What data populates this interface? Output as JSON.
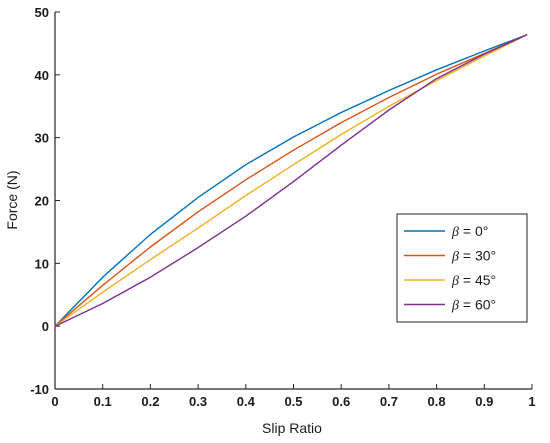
{
  "chart_data": {
    "type": "line",
    "title": "",
    "xlabel": "Slip Ratio",
    "ylabel": "Force (N)",
    "xlim": [
      0,
      1
    ],
    "ylim": [
      -10,
      50
    ],
    "xticks": [
      0,
      0.1,
      0.2,
      0.3,
      0.4,
      0.5,
      0.6,
      0.7,
      0.8,
      0.9,
      1
    ],
    "xtick_labels": [
      "0",
      "0.1",
      "0.2",
      "0.3",
      "0.4",
      "0.5",
      "0.6",
      "0.7",
      "0.8",
      "0.9",
      "1"
    ],
    "yticks": [
      -10,
      0,
      10,
      20,
      30,
      40,
      50
    ],
    "ytick_labels": [
      "-10",
      "0",
      "10",
      "20",
      "30",
      "40",
      "50"
    ],
    "grid": false,
    "legend_position": "right",
    "x": [
      0,
      0.1,
      0.2,
      0.3,
      0.4,
      0.5,
      0.6,
      0.7,
      0.8,
      0.9,
      0.99
    ],
    "series": [
      {
        "name": "β = 0°",
        "symbol": "β",
        "rest": " = 0°",
        "color": "#0072BD",
        "values": [
          0,
          7.8,
          14.6,
          20.5,
          25.7,
          30.1,
          34.0,
          37.5,
          40.8,
          43.8,
          46.4
        ]
      },
      {
        "name": "β = 30°",
        "symbol": "β",
        "rest": " = 30°",
        "color": "#D95319",
        "values": [
          0,
          6.5,
          12.6,
          18.2,
          23.3,
          28.0,
          32.4,
          36.4,
          40.1,
          43.4,
          46.4
        ]
      },
      {
        "name": "β = 45°",
        "symbol": "β",
        "rest": " = 45°",
        "color": "#EDB120",
        "values": [
          0,
          5.4,
          10.6,
          15.6,
          20.8,
          25.7,
          30.5,
          35.0,
          39.1,
          43.0,
          46.4
        ]
      },
      {
        "name": "β = 60°",
        "symbol": "β",
        "rest": " = 60°",
        "color": "#7E2F8E",
        "values": [
          0,
          3.6,
          7.8,
          12.5,
          17.5,
          23.0,
          28.8,
          34.4,
          39.4,
          43.3,
          46.4
        ]
      }
    ]
  }
}
